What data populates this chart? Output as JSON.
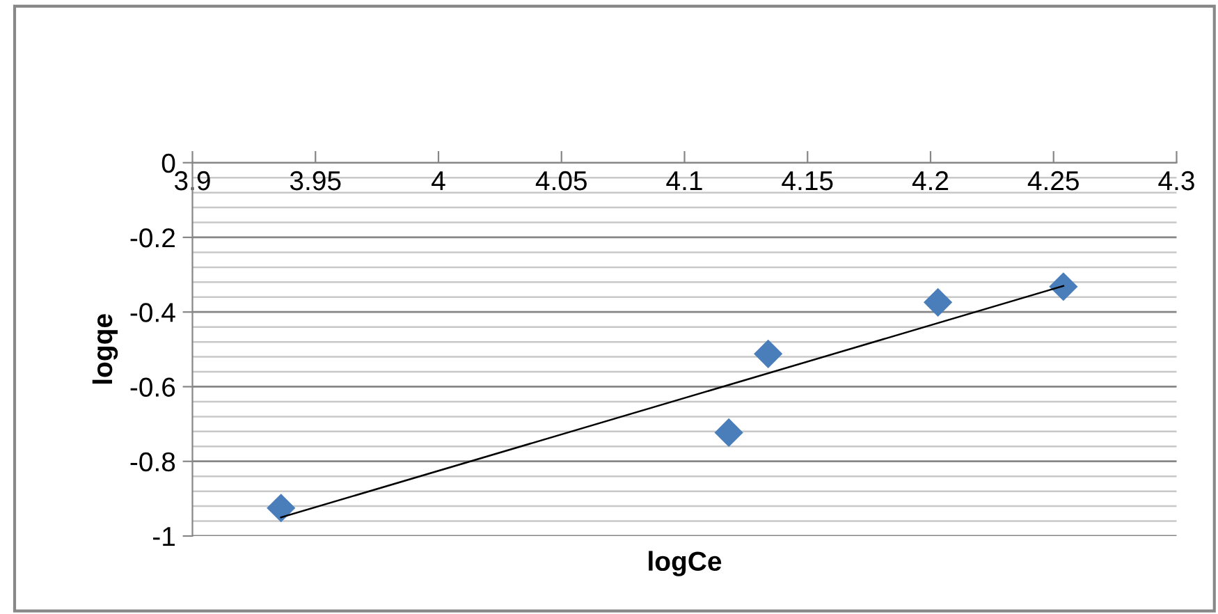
{
  "chart_data": {
    "type": "scatter",
    "xlabel": "logCe",
    "ylabel": "logqe",
    "series": [
      {
        "color": "#4a7ebb",
        "marker": "diamond",
        "x": [
          3.936,
          4.118,
          4.134,
          4.203,
          4.254
        ],
        "values": [
          -0.925,
          -0.723,
          -0.512,
          -0.374,
          -0.332
        ]
      },
      {
        "type": "line",
        "color": "#000000",
        "marker": "none",
        "line_style": "solid",
        "x": [
          3.936,
          4.254
        ],
        "values": [
          -0.95,
          -0.33
        ]
      }
    ],
    "xlim": [
      3.9,
      4.3
    ],
    "xticks": [
      3.9,
      3.95,
      4,
      4.05,
      4.1,
      4.15,
      4.2,
      4.25,
      4.3
    ],
    "ylim": [
      -1,
      0
    ],
    "yticks": [
      0,
      {
        "value": -0.04,
        "label": null
      },
      {
        "value": -0.08,
        "label": null
      },
      {
        "value": -0.12,
        "label": null
      },
      {
        "value": -0.16,
        "label": null
      },
      -0.2,
      {
        "value": -0.24,
        "label": null
      },
      {
        "value": -0.28,
        "label": null
      },
      {
        "value": -0.32,
        "label": null
      },
      {
        "value": -0.36,
        "label": null
      },
      -0.4,
      {
        "value": -0.44,
        "label": null
      },
      {
        "value": -0.48,
        "label": null
      },
      {
        "value": -0.52,
        "label": null
      },
      {
        "value": -0.56,
        "label": null
      },
      -0.6,
      {
        "value": -0.64,
        "label": null
      },
      {
        "value": -0.68,
        "label": null
      },
      {
        "value": -0.72,
        "label": null
      },
      {
        "value": -0.76,
        "label": null
      },
      -0.8,
      {
        "value": -0.84,
        "label": null
      },
      {
        "value": -0.88,
        "label": null
      },
      {
        "value": -0.92,
        "label": null
      },
      {
        "value": -0.96,
        "label": null
      },
      -1
    ],
    "grid": "y",
    "legend": false
  }
}
